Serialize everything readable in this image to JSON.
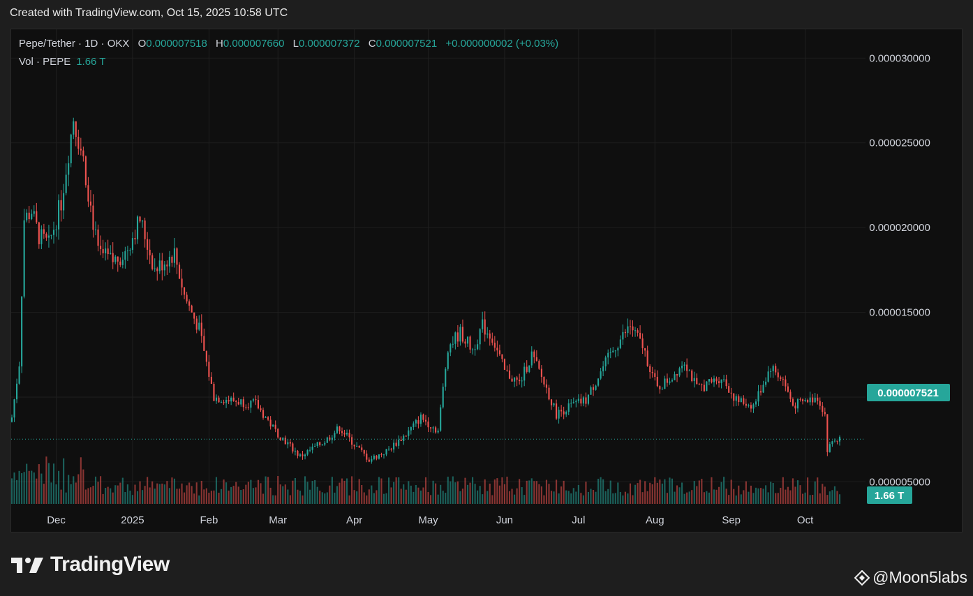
{
  "header": {
    "created": "Created with TradingView.com, Oct 15, 2025 10:58 UTC"
  },
  "legend": {
    "symbol": "Pepe/Tether · 1D · OKX",
    "open_label": "O",
    "open": "0.000007518",
    "high_label": "H",
    "high": "0.000007660",
    "low_label": "L",
    "low": "0.000007372",
    "close_label": "C",
    "close": "0.000007521",
    "change": "+0.000000002 (+0.03%)",
    "vol_label": "Vol · PEPE",
    "vol": "1.66 T"
  },
  "badges": {
    "last_price": "0.000007521",
    "last_volume": "1.66 T"
  },
  "brand": {
    "name": "TradingView"
  },
  "credit": {
    "text": "@Moon5labs"
  },
  "colors": {
    "up": "#26a69a",
    "down": "#ef5350",
    "background": "#0f0f0f",
    "grid": "#1f1f1f"
  },
  "chart_data": {
    "type": "candlestick",
    "title": "Pepe/Tether · 1D · OKX",
    "y_axis": {
      "range": [
        3.7e-06,
        3.17e-05
      ],
      "ticks": [
        "0.000030000",
        "0.000025000",
        "0.000020000",
        "0.000015000",
        "0.000010000",
        "0.000005000"
      ],
      "position": "right"
    },
    "x_axis": {
      "ticks": [
        "Dec",
        "2025",
        "Feb",
        "Mar",
        "Apr",
        "May",
        "Jun",
        "Jul",
        "Aug",
        "Sep",
        "Oct"
      ]
    },
    "grid": true,
    "series": [
      {
        "type": "close_price_path",
        "points": [
          {
            "x": "2024-11-13",
            "y": 8.8e-06
          },
          {
            "x": "2024-11-16",
            "y": 1.2e-05
          },
          {
            "x": "2024-11-18",
            "y": 2.05e-05
          },
          {
            "x": "2024-11-21",
            "y": 2.1e-05
          },
          {
            "x": "2024-11-24",
            "y": 1.95e-05
          },
          {
            "x": "2024-11-28",
            "y": 1.9e-05
          },
          {
            "x": "2024-12-03",
            "y": 2.15e-05
          },
          {
            "x": "2024-12-08",
            "y": 2.65e-05
          },
          {
            "x": "2024-12-12",
            "y": 2.4e-05
          },
          {
            "x": "2024-12-18",
            "y": 1.85e-05
          },
          {
            "x": "2024-12-24",
            "y": 1.8e-05
          },
          {
            "x": "2024-12-29",
            "y": 1.85e-05
          },
          {
            "x": "2025-01-04",
            "y": 2.05e-05
          },
          {
            "x": "2025-01-10",
            "y": 1.75e-05
          },
          {
            "x": "2025-01-18",
            "y": 1.85e-05
          },
          {
            "x": "2025-01-22",
            "y": 1.6e-05
          },
          {
            "x": "2025-01-28",
            "y": 1.4e-05
          },
          {
            "x": "2025-02-03",
            "y": 1e-05
          },
          {
            "x": "2025-02-10",
            "y": 9.8e-06
          },
          {
            "x": "2025-02-20",
            "y": 9.6e-06
          },
          {
            "x": "2025-02-28",
            "y": 8e-06
          },
          {
            "x": "2025-03-10",
            "y": 6.5e-06
          },
          {
            "x": "2025-03-20",
            "y": 7.4e-06
          },
          {
            "x": "2025-03-26",
            "y": 8.2e-06
          },
          {
            "x": "2025-04-01",
            "y": 7.2e-06
          },
          {
            "x": "2025-04-07",
            "y": 6.3e-06
          },
          {
            "x": "2025-04-14",
            "y": 6.8e-06
          },
          {
            "x": "2025-04-22",
            "y": 7.8e-06
          },
          {
            "x": "2025-04-28",
            "y": 8.8e-06
          },
          {
            "x": "2025-05-05",
            "y": 8e-06
          },
          {
            "x": "2025-05-09",
            "y": 1.3e-05
          },
          {
            "x": "2025-05-14",
            "y": 1.38e-05
          },
          {
            "x": "2025-05-19",
            "y": 1.28e-05
          },
          {
            "x": "2025-05-23",
            "y": 1.42e-05
          },
          {
            "x": "2025-05-27",
            "y": 1.35e-05
          },
          {
            "x": "2025-06-01",
            "y": 1.15e-05
          },
          {
            "x": "2025-06-07",
            "y": 1.08e-05
          },
          {
            "x": "2025-06-12",
            "y": 1.25e-05
          },
          {
            "x": "2025-06-18",
            "y": 1.05e-05
          },
          {
            "x": "2025-06-22",
            "y": 9e-06
          },
          {
            "x": "2025-06-28",
            "y": 9.5e-06
          },
          {
            "x": "2025-07-04",
            "y": 9.8e-06
          },
          {
            "x": "2025-07-10",
            "y": 1.15e-05
          },
          {
            "x": "2025-07-16",
            "y": 1.3e-05
          },
          {
            "x": "2025-07-22",
            "y": 1.42e-05
          },
          {
            "x": "2025-07-27",
            "y": 1.3e-05
          },
          {
            "x": "2025-08-02",
            "y": 1.05e-05
          },
          {
            "x": "2025-08-08",
            "y": 1.12e-05
          },
          {
            "x": "2025-08-13",
            "y": 1.22e-05
          },
          {
            "x": "2025-08-18",
            "y": 1.05e-05
          },
          {
            "x": "2025-08-23",
            "y": 1.08e-05
          },
          {
            "x": "2025-08-28",
            "y": 1.12e-05
          },
          {
            "x": "2025-09-03",
            "y": 9.8e-06
          },
          {
            "x": "2025-09-10",
            "y": 9.5e-06
          },
          {
            "x": "2025-09-17",
            "y": 1.18e-05
          },
          {
            "x": "2025-09-22",
            "y": 1.1e-05
          },
          {
            "x": "2025-09-26",
            "y": 9.5e-06
          },
          {
            "x": "2025-10-02",
            "y": 9.8e-06
          },
          {
            "x": "2025-10-06",
            "y": 1e-05
          },
          {
            "x": "2025-10-09",
            "y": 9e-06
          },
          {
            "x": "2025-10-10",
            "y": 6.8e-06
          },
          {
            "x": "2025-10-12",
            "y": 7.4e-06
          },
          {
            "x": "2025-10-14",
            "y": 7.5e-06
          },
          {
            "x": "2025-10-15",
            "y": 7.521e-06
          }
        ]
      },
      {
        "type": "volume",
        "name": "Vol · PEPE",
        "last": "1.66 T"
      }
    ],
    "last_price": 7.521e-06
  }
}
